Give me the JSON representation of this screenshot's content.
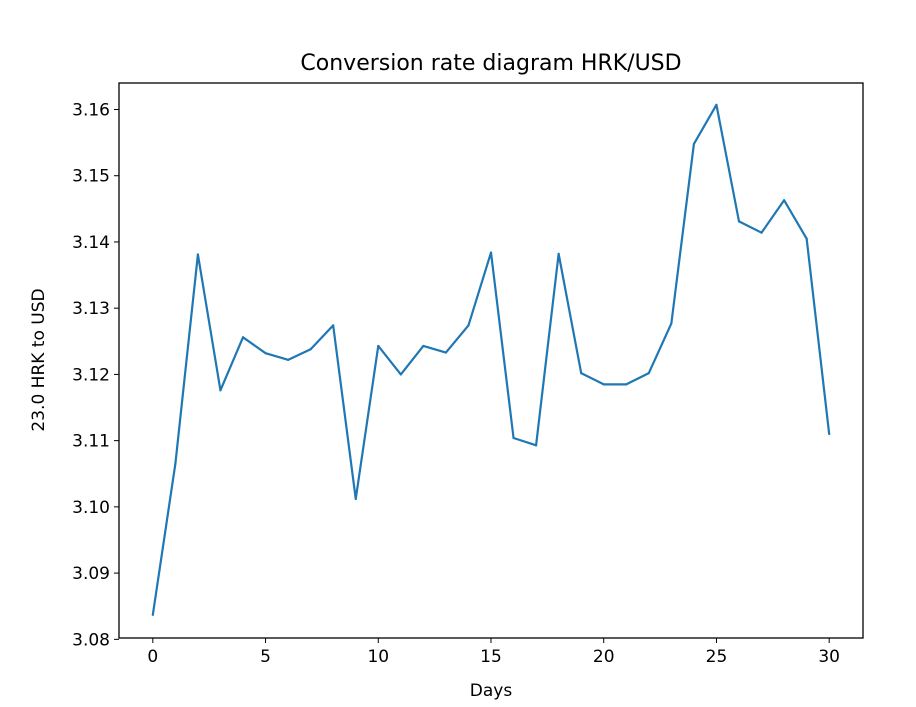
{
  "chart_data": {
    "type": "line",
    "title": "Conversion rate diagram HRK/USD",
    "xlabel": "Days",
    "ylabel": "23.0 HRK to USD",
    "xlim": [
      -1.5,
      31.5
    ],
    "ylim": [
      3.0802,
      3.164
    ],
    "x_ticks": [
      0,
      5,
      10,
      15,
      20,
      25,
      30
    ],
    "y_ticks": [
      3.08,
      3.09,
      3.1,
      3.11,
      3.12,
      3.13,
      3.14,
      3.15,
      3.16
    ],
    "y_tick_labels": [
      "3.08",
      "3.09",
      "3.10",
      "3.11",
      "3.12",
      "3.13",
      "3.14",
      "3.15",
      "3.16"
    ],
    "grid": false,
    "series": [
      {
        "color": "#1f77b4",
        "x": [
          0,
          1,
          2,
          3,
          4,
          5,
          6,
          7,
          8,
          9,
          10,
          11,
          12,
          13,
          14,
          15,
          16,
          17,
          18,
          19,
          20,
          21,
          22,
          23,
          24,
          25,
          26,
          27,
          28,
          29,
          30
        ],
        "values": [
          3.0837,
          3.1065,
          3.1381,
          3.1176,
          3.1256,
          3.1232,
          3.1222,
          3.1238,
          3.1274,
          3.1012,
          3.1243,
          3.12,
          3.1243,
          3.1233,
          3.1274,
          3.1384,
          3.1104,
          3.1093,
          3.1382,
          3.1202,
          3.1185,
          3.1185,
          3.1202,
          3.1277,
          3.1548,
          3.1607,
          3.1431,
          3.1414,
          3.1463,
          3.1405,
          3.111
        ]
      }
    ]
  }
}
